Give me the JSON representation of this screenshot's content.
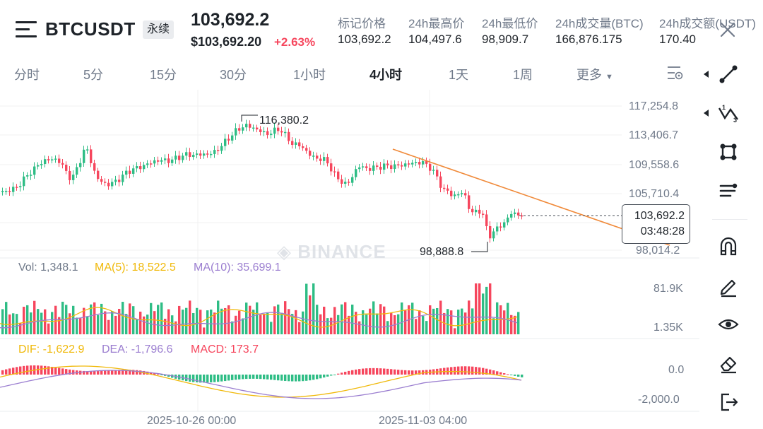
{
  "header": {
    "symbol": "BTCUSDT",
    "contract_type": "永续",
    "last_price": "103,692.2",
    "usd_price": "$103,692.20",
    "change_pct": "+2.63%",
    "stats": [
      {
        "label": "标记价格",
        "value": "103,692.2"
      },
      {
        "label": "24h最高价",
        "value": "104,497.6"
      },
      {
        "label": "24h最低价",
        "value": "98,909.7"
      },
      {
        "label": "24h成交量(BTC)",
        "value": "166,876.175"
      },
      {
        "label": "24h成交额(USDT)",
        "value": "170.40"
      }
    ],
    "icons": {
      "menu": "menu-icon",
      "close": "close-icon"
    }
  },
  "tabs": [
    {
      "label": "分时",
      "active": false
    },
    {
      "label": "5分",
      "active": false
    },
    {
      "label": "15分",
      "active": false
    },
    {
      "label": "30分",
      "active": false
    },
    {
      "label": "1小时",
      "active": false
    },
    {
      "label": "4小时",
      "active": true
    },
    {
      "label": "1天",
      "active": false
    },
    {
      "label": "1周",
      "active": false
    }
  ],
  "more_tab": "更多",
  "chart": {
    "watermark": "BINANCE",
    "price_axis": [
      "117,254.8",
      "113,406.7",
      "109,558.6",
      "105,710.4",
      "98,014.2"
    ],
    "high_marker": "116,380.2",
    "low_marker": "98,888.8",
    "current_price": "103,692.2",
    "countdown": "03:48:28",
    "volume": {
      "vol_label": "Vol: 1,348.1",
      "ma5_label": "MA(5): 18,522.5",
      "ma10_label": "MA(10): 35,699.1",
      "axis": [
        "81.9K",
        "1.35K"
      ]
    },
    "macd": {
      "dif_label": "DIF: -1,622.9",
      "dea_label": "DEA: -1,796.6",
      "macd_label": "MACD: 173.7",
      "axis": [
        "0.0",
        "-2,000.0"
      ]
    },
    "time_axis": [
      "2025-10-26 00:00",
      "2025-11-03 04:00"
    ],
    "colors": {
      "up": "#2ebd85",
      "down": "#f6465d",
      "ma5": "#f0b90b",
      "ma10": "#9b7ed0",
      "trendline": "#f08a3a",
      "dea": "#9b7ed0",
      "dif": "#f0b90b"
    }
  },
  "toolbar": {
    "tools": [
      "trendline-tool-icon",
      "fibonacci-tool-icon",
      "shape-tool-icon",
      "brush-tool-icon",
      "magnet-icon",
      "pencil-icon",
      "eye-icon",
      "eraser-icon",
      "exit-icon"
    ]
  }
}
